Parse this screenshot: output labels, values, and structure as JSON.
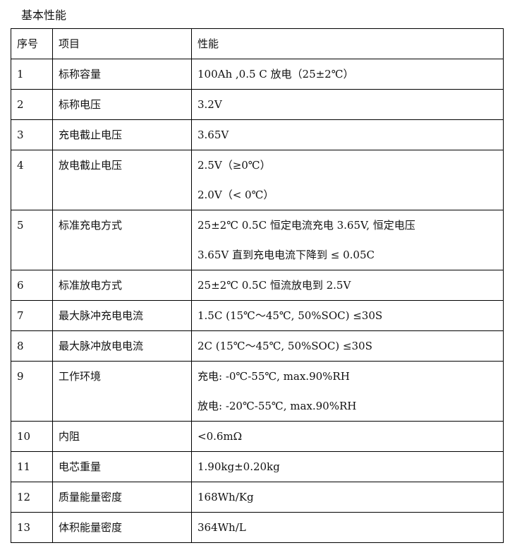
{
  "title": "基本性能",
  "table": {
    "headers": [
      "序号",
      "项目",
      "性能"
    ],
    "rows": [
      {
        "no": "1",
        "item": "标称容量",
        "value": [
          "100Ah ,0.5 C 放电（25±2℃）"
        ]
      },
      {
        "no": "2",
        "item": "标称电压",
        "value": [
          "3.2V"
        ]
      },
      {
        "no": "3",
        "item": "充电截止电压",
        "value": [
          "3.65V"
        ]
      },
      {
        "no": "4",
        "item": "放电截止电压",
        "value": [
          "2.5V（≥0℃）",
          "2.0V（< 0℃）"
        ]
      },
      {
        "no": "5",
        "item": "标准充电方式",
        "value": [
          "25±2℃ 0.5C 恒定电流充电 3.65V, 恒定电压",
          "3.65V 直到充电电流下降到 ≤ 0.05C"
        ]
      },
      {
        "no": "6",
        "item": "标准放电方式",
        "value": [
          "25±2℃ 0.5C 恒流放电到 2.5V"
        ]
      },
      {
        "no": "7",
        "item": "最大脉冲充电电流",
        "value": [
          "1.5C (15℃～45℃, 50%SOC) ≤30S"
        ]
      },
      {
        "no": "8",
        "item": "最大脉冲放电电流",
        "value": [
          "2C (15℃～45℃, 50%SOC) ≤30S"
        ]
      },
      {
        "no": "9",
        "item": "工作环境",
        "value": [
          "充电: -0℃-55℃, max.90%RH",
          "放电: -20℃-55℃, max.90%RH"
        ]
      },
      {
        "no": "10",
        "item": "内阻",
        "value": [
          "<0.6mΩ"
        ]
      },
      {
        "no": "11",
        "item": "电芯重量",
        "value": [
          "1.90kg±0.20kg"
        ]
      },
      {
        "no": "12",
        "item": "质量能量密度",
        "value": [
          "168Wh/Kg"
        ]
      },
      {
        "no": "13",
        "item": "体积能量密度",
        "value": [
          "364Wh/L"
        ]
      }
    ]
  }
}
